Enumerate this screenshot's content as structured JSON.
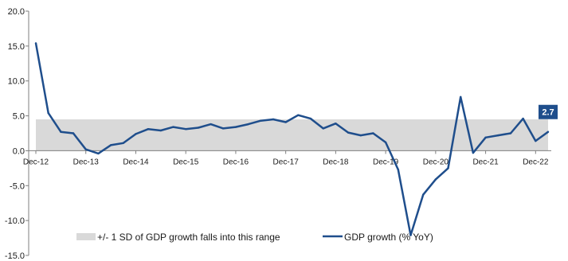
{
  "chart_data": {
    "type": "line",
    "title": "",
    "xlabel": "",
    "ylabel": "",
    "ylim": [
      -15,
      20
    ],
    "yticks": [
      "20.0",
      "15.0",
      "10.0",
      "5.0",
      "0.0",
      "-5.0",
      "-10.0",
      "-15.0"
    ],
    "ytick_values": [
      20,
      15,
      10,
      5,
      0,
      -5,
      -10,
      -15
    ],
    "xtick_labels": [
      "Dec-12",
      "Dec-13",
      "Dec-14",
      "Dec-15",
      "Dec-16",
      "Dec-17",
      "Dec-18",
      "Dec-19",
      "Dec-20",
      "Dec-21",
      "Dec-22"
    ],
    "grid": false,
    "legend_position": "bottom",
    "band": {
      "name": "+/- 1 SD of GDP growth falls into this range",
      "low": 0.0,
      "high": 4.5,
      "color": "#d9d9d9"
    },
    "series": [
      {
        "name": "GDP growth (% YoY)",
        "color": "#1f4e8c",
        "values": [
          15.4,
          5.4,
          2.7,
          2.5,
          0.2,
          -0.4,
          0.8,
          1.1,
          2.4,
          3.1,
          2.9,
          3.4,
          3.1,
          3.3,
          3.8,
          3.2,
          3.4,
          3.8,
          4.3,
          4.5,
          4.1,
          5.1,
          4.6,
          3.2,
          3.9,
          2.6,
          2.2,
          2.5,
          1.2,
          -2.7,
          -12.1,
          -6.3,
          -4.1,
          -2.5,
          7.7,
          -0.3,
          1.9,
          2.2,
          2.5,
          4.6,
          1.4,
          2.7
        ]
      }
    ],
    "last_value_label": "2.7"
  }
}
